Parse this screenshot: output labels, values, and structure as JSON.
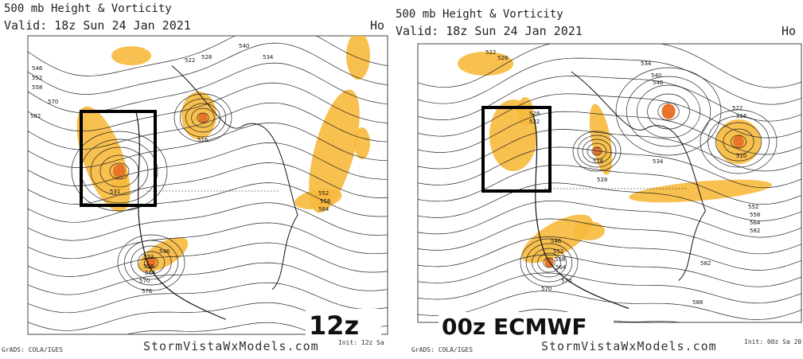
{
  "panels": [
    {
      "title": "500 mb Height & Vorticity",
      "valid": "Valid: 18z Sun 24 Jan 2021",
      "header_cut": "Ho",
      "model_label": "12z",
      "credit": "StormVistaWxModels.com",
      "grads": "GrADS: COLA/IGES",
      "init": "Init: 12z Sa",
      "contour_labels": [
        "546",
        "552",
        "558",
        "570",
        "582",
        "522",
        "528",
        "540",
        "534",
        "516",
        "531",
        "522",
        "546",
        "558",
        "564",
        "570",
        "576",
        "552",
        "558",
        "564"
      ]
    },
    {
      "title": "500 mb Height & Vorticity",
      "valid": "Valid: 18z Sun 24 Jan 2021",
      "header_cut": "Ho",
      "model_label": "00z ECMWF",
      "credit": "StormVistaWxModels.com",
      "grads": "GrADS: COLA/IGES",
      "init": "Init: 00z Sa 20",
      "contour_labels": [
        "522",
        "528",
        "534",
        "540",
        "546",
        "528",
        "522",
        "528",
        "516",
        "510",
        "522",
        "516",
        "534",
        "546",
        "552",
        "558",
        "564",
        "570",
        "582",
        "552",
        "558",
        "564",
        "582",
        "588",
        "570"
      ]
    }
  ]
}
